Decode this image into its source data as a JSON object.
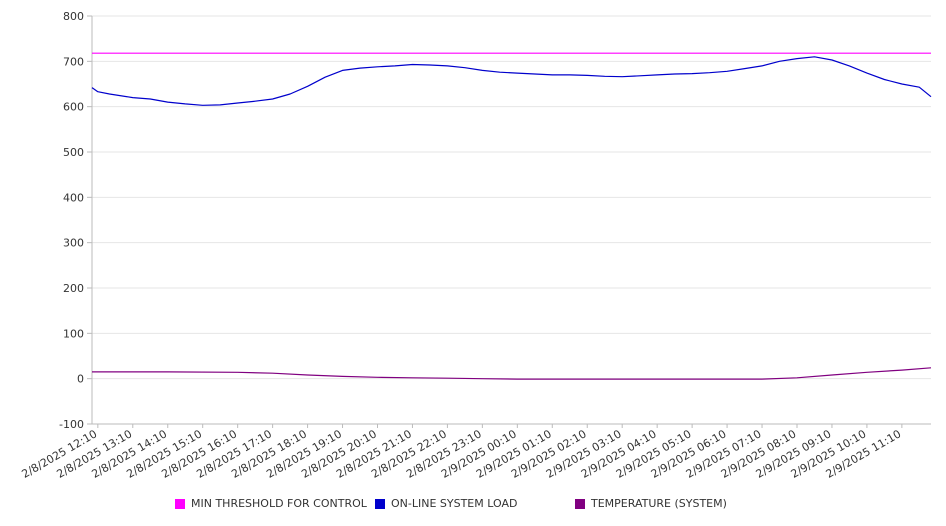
{
  "chart_data": {
    "type": "line",
    "ylim": [
      -100,
      800
    ],
    "y_ticks": [
      800,
      700,
      600,
      500,
      400,
      300,
      200,
      100,
      0,
      -100
    ],
    "x_ticks": [
      "2/8/2025 12:10",
      "2/8/2025 13:10",
      "2/8/2025 14:10",
      "2/8/2025 15:10",
      "2/8/2025 16:10",
      "2/8/2025 17:10",
      "2/8/2025 18:10",
      "2/8/2025 19:10",
      "2/8/2025 20:10",
      "2/8/2025 21:10",
      "2/8/2025 22:10",
      "2/8/2025 23:10",
      "2/9/2025 00:10",
      "2/9/2025 01:10",
      "2/9/2025 02:10",
      "2/9/2025 03:10",
      "2/9/2025 04:10",
      "2/9/2025 05:10",
      "2/9/2025 06:10",
      "2/9/2025 07:10",
      "2/9/2025 08:10",
      "2/9/2025 09:10",
      "2/9/2025 10:10",
      "2/9/2025 11:10"
    ],
    "grid": true,
    "legend_position": "bottom",
    "series": [
      {
        "name": "MIN THRESHOLD FOR CONTROL",
        "color": "#ff00ff",
        "x": [
          "2/8/2025 12:00",
          "2/9/2025 12:00"
        ],
        "values": [
          718,
          718
        ]
      },
      {
        "name": "ON-LINE SYSTEM LOAD",
        "color": "#0000cc",
        "x": [
          "2/8/2025 12:00",
          "2/8/2025 12:10",
          "2/8/2025 12:30",
          "2/8/2025 13:10",
          "2/8/2025 13:40",
          "2/8/2025 14:10",
          "2/8/2025 14:40",
          "2/8/2025 15:10",
          "2/8/2025 15:40",
          "2/8/2025 16:10",
          "2/8/2025 16:40",
          "2/8/2025 17:10",
          "2/8/2025 17:40",
          "2/8/2025 18:10",
          "2/8/2025 18:40",
          "2/8/2025 19:10",
          "2/8/2025 19:40",
          "2/8/2025 20:10",
          "2/8/2025 20:40",
          "2/8/2025 21:10",
          "2/8/2025 21:40",
          "2/8/2025 22:10",
          "2/8/2025 22:40",
          "2/8/2025 23:10",
          "2/8/2025 23:40",
          "2/9/2025 00:10",
          "2/9/2025 00:40",
          "2/9/2025 01:10",
          "2/9/2025 01:40",
          "2/9/2025 02:10",
          "2/9/2025 02:40",
          "2/9/2025 03:10",
          "2/9/2025 03:40",
          "2/9/2025 04:10",
          "2/9/2025 04:40",
          "2/9/2025 05:10",
          "2/9/2025 05:40",
          "2/9/2025 06:10",
          "2/9/2025 06:40",
          "2/9/2025 07:10",
          "2/9/2025 07:40",
          "2/9/2025 08:10",
          "2/9/2025 08:40",
          "2/9/2025 09:10",
          "2/9/2025 09:40",
          "2/9/2025 10:10",
          "2/9/2025 10:40",
          "2/9/2025 11:10",
          "2/9/2025 11:40",
          "2/9/2025 12:00"
        ],
        "values": [
          642,
          633,
          628,
          620,
          617,
          610,
          606,
          603,
          604,
          608,
          612,
          617,
          628,
          645,
          665,
          680,
          685,
          688,
          690,
          693,
          692,
          690,
          686,
          680,
          676,
          674,
          672,
          670,
          670,
          669,
          667,
          666,
          668,
          670,
          672,
          673,
          675,
          678,
          684,
          690,
          700,
          706,
          710,
          703,
          690,
          674,
          660,
          650,
          643,
          622
        ]
      },
      {
        "name": "TEMPERATURE (SYSTEM)",
        "color": "#800080",
        "x": [
          "2/8/2025 12:00",
          "2/8/2025 14:10",
          "2/8/2025 16:10",
          "2/8/2025 17:10",
          "2/8/2025 18:10",
          "2/8/2025 19:10",
          "2/8/2025 20:10",
          "2/8/2025 21:10",
          "2/8/2025 22:10",
          "2/8/2025 23:10",
          "2/9/2025 00:10",
          "2/9/2025 02:10",
          "2/9/2025 04:10",
          "2/9/2025 06:10",
          "2/9/2025 07:10",
          "2/9/2025 08:10",
          "2/9/2025 09:10",
          "2/9/2025 10:10",
          "2/9/2025 11:10",
          "2/9/2025 12:00"
        ],
        "values": [
          15,
          15,
          14,
          12,
          8,
          5,
          3,
          2,
          1,
          0,
          -1,
          -1,
          -1,
          -1,
          -1,
          2,
          8,
          14,
          19,
          24
        ]
      }
    ]
  }
}
